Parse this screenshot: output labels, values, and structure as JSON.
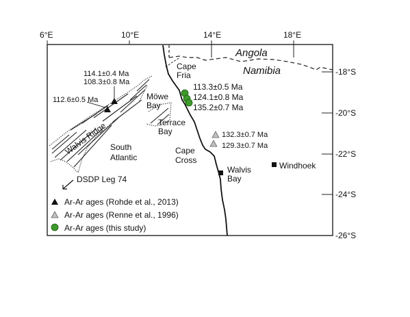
{
  "axes": {
    "lon_ticks": [
      "6°E",
      "10°E",
      "14°E",
      "18°E"
    ],
    "lat_ticks": [
      "-18°S",
      "-20°S",
      "-22°S",
      "-24°S",
      "-26°S"
    ]
  },
  "countries": {
    "angola": "Angola",
    "namibia": "Namibia"
  },
  "places": {
    "cape_fria_1": "Cape",
    "cape_fria_2": "Fria",
    "mowe_bay_1": "Möwe",
    "mowe_bay_2": "Bay",
    "terrace_bay_1": "Terrace",
    "terrace_bay_2": "Bay",
    "cape_cross_1": "Cape",
    "cape_cross_2": "Cross",
    "walvis_bay_1": "Walvis",
    "walvis_bay_2": "Bay",
    "windhoek": "Windhoek",
    "south_atlantic_1": "South",
    "south_atlantic_2": "Atlantic",
    "walvis_ridge": "Walvis Ridge",
    "dsdp": "DSDP Leg 74"
  },
  "ages": {
    "rohde_a": "114.1±0.4 Ma",
    "rohde_b": "108.3±0.8 Ma",
    "rohde_c": "112.6±0.5 Ma",
    "study_a": "113.3±0.5 Ma",
    "study_b": "124.1±0.8 Ma",
    "study_c": "135.2±0.7 Ma",
    "renne_a": "132.3±0.7 Ma",
    "renne_b": "129.3±0.7 Ma"
  },
  "legend": [
    {
      "label": "Ar-Ar ages (Rohde et al., 2013)",
      "symbol": "black-triangle",
      "color": "#000000"
    },
    {
      "label": "Ar-Ar ages (Renne et al., 1996)",
      "symbol": "grey-triangle",
      "color": "#bfbfbf"
    },
    {
      "label": "Ar-Ar ages (this study)",
      "symbol": "green-circle",
      "color": "#3d9a2a"
    }
  ],
  "colors": {
    "study_green": "#3d9a2a",
    "renne_grey": "#bfbfbf",
    "ink": "#111111"
  }
}
